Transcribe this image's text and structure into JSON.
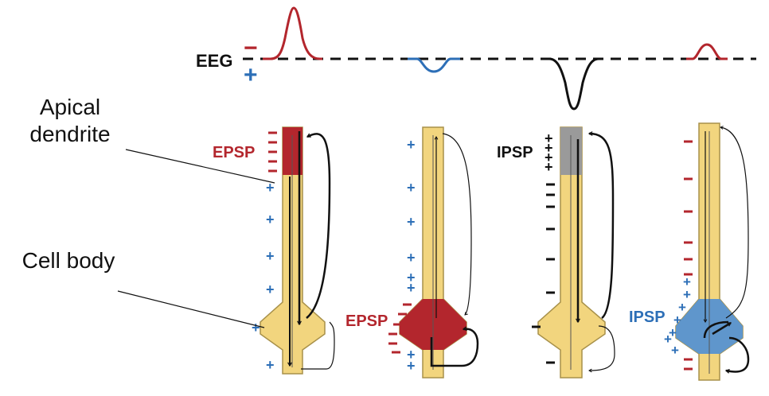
{
  "labels": {
    "eeg": "EEG",
    "eeg_negative": "−",
    "eeg_positive": "+",
    "apical_dendrite_line1": "Apical",
    "apical_dendrite_line2": "dendrite",
    "cell_body": "Cell body",
    "epsp_1": "EPSP",
    "epsp_2": "EPSP",
    "ipsp_3": "IPSP",
    "ipsp_4": "IPSP"
  },
  "colors": {
    "neuron_fill": "#f2d57e",
    "neuron_stroke": "#a8914a",
    "excitatory_red": "#b3262d",
    "inhibitory_blue": "#5f96cc",
    "inhibition_gray": "#9a9a9a",
    "positive_blue": "#2d6fb7",
    "negative_red": "#b3262d",
    "ink": "#111111"
  },
  "panels": [
    {
      "id": "1",
      "synapse": "EPSP",
      "location": "apical",
      "eeg_wave": "large-negative-peak",
      "wave_color": "red"
    },
    {
      "id": "2",
      "synapse": "EPSP",
      "location": "soma",
      "eeg_wave": "small-positive-dip",
      "wave_color": "blue"
    },
    {
      "id": "3",
      "synapse": "IPSP",
      "location": "apical",
      "eeg_wave": "large-positive-dip",
      "wave_color": "black"
    },
    {
      "id": "4",
      "synapse": "IPSP",
      "location": "soma",
      "eeg_wave": "small-negative-peak",
      "wave_color": "red"
    }
  ]
}
